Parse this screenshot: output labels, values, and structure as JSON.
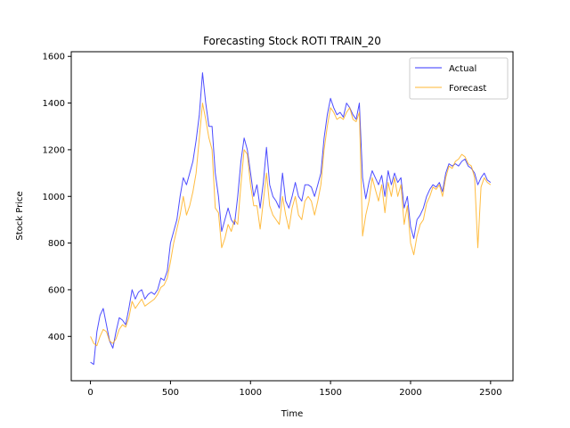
{
  "chart_data": {
    "type": "line",
    "title": "Forecasting Stock ROTI TRAIN_20",
    "xlabel": "Time",
    "ylabel": "Stock Price",
    "xlim": [
      -120,
      2640
    ],
    "ylim": [
      210,
      1620
    ],
    "xticks": [
      0,
      500,
      1000,
      1500,
      2000,
      2500
    ],
    "yticks": [
      400,
      600,
      800,
      1000,
      1200,
      1400,
      1600
    ],
    "grid": false,
    "legend_position": "top-right",
    "series": [
      {
        "name": "Actual",
        "color": "#0000ff",
        "x": [
          0,
          20,
          40,
          60,
          80,
          100,
          120,
          140,
          160,
          180,
          200,
          220,
          240,
          260,
          280,
          300,
          320,
          340,
          360,
          380,
          400,
          420,
          440,
          460,
          480,
          500,
          520,
          540,
          560,
          580,
          600,
          620,
          640,
          660,
          680,
          700,
          720,
          740,
          760,
          780,
          800,
          820,
          840,
          860,
          880,
          900,
          920,
          940,
          960,
          980,
          1000,
          1020,
          1040,
          1060,
          1080,
          1100,
          1120,
          1140,
          1160,
          1180,
          1200,
          1220,
          1240,
          1260,
          1280,
          1300,
          1320,
          1340,
          1360,
          1380,
          1400,
          1420,
          1440,
          1460,
          1480,
          1500,
          1520,
          1540,
          1560,
          1580,
          1600,
          1620,
          1640,
          1660,
          1680,
          1700,
          1720,
          1740,
          1760,
          1780,
          1800,
          1820,
          1840,
          1860,
          1880,
          1900,
          1920,
          1940,
          1960,
          1980,
          2000,
          2020,
          2040,
          2060,
          2080,
          2100,
          2120,
          2140,
          2160,
          2180,
          2200,
          2220,
          2240,
          2260,
          2280,
          2300,
          2320,
          2340,
          2360,
          2380,
          2400,
          2420,
          2440,
          2460,
          2480,
          2500
        ],
        "values": [
          290,
          280,
          420,
          490,
          520,
          450,
          380,
          350,
          420,
          480,
          470,
          450,
          520,
          600,
          560,
          590,
          600,
          560,
          580,
          590,
          580,
          600,
          650,
          640,
          680,
          800,
          850,
          900,
          1000,
          1080,
          1050,
          1100,
          1150,
          1240,
          1350,
          1530,
          1400,
          1300,
          1300,
          1100,
          1000,
          850,
          900,
          950,
          900,
          880,
          1000,
          1150,
          1250,
          1200,
          1100,
          1000,
          1050,
          950,
          1060,
          1210,
          1050,
          1000,
          980,
          950,
          1100,
          980,
          950,
          1000,
          1060,
          1000,
          980,
          1050,
          1050,
          1040,
          1000,
          1050,
          1100,
          1250,
          1350,
          1420,
          1380,
          1350,
          1360,
          1340,
          1400,
          1380,
          1350,
          1330,
          1400,
          1080,
          990,
          1060,
          1110,
          1080,
          1050,
          1090,
          1000,
          1110,
          1050,
          1100,
          1060,
          1080,
          950,
          1000,
          870,
          820,
          900,
          920,
          950,
          1000,
          1030,
          1050,
          1040,
          1060,
          1020,
          1100,
          1140,
          1130,
          1140,
          1130,
          1150,
          1160,
          1130,
          1120,
          1100,
          1050,
          1080,
          1100,
          1070,
          1060
        ]
      },
      {
        "name": "Forecast",
        "color": "#ffa500",
        "x": [
          0,
          20,
          40,
          60,
          80,
          100,
          120,
          140,
          160,
          180,
          200,
          220,
          240,
          260,
          280,
          300,
          320,
          340,
          360,
          380,
          400,
          420,
          440,
          460,
          480,
          500,
          520,
          540,
          560,
          580,
          600,
          620,
          640,
          660,
          680,
          700,
          720,
          740,
          760,
          780,
          800,
          820,
          840,
          860,
          880,
          900,
          920,
          940,
          960,
          980,
          1000,
          1020,
          1040,
          1060,
          1080,
          1100,
          1120,
          1140,
          1160,
          1180,
          1200,
          1220,
          1240,
          1260,
          1280,
          1300,
          1320,
          1340,
          1360,
          1380,
          1400,
          1420,
          1440,
          1460,
          1480,
          1500,
          1520,
          1540,
          1560,
          1580,
          1600,
          1620,
          1640,
          1660,
          1680,
          1700,
          1720,
          1740,
          1760,
          1780,
          1800,
          1820,
          1840,
          1860,
          1880,
          1900,
          1920,
          1940,
          1960,
          1980,
          2000,
          2020,
          2040,
          2060,
          2080,
          2100,
          2120,
          2140,
          2160,
          2180,
          2200,
          2220,
          2240,
          2260,
          2280,
          2300,
          2320,
          2340,
          2360,
          2380,
          2400,
          2420,
          2440,
          2460,
          2480,
          2500
        ],
        "values": [
          400,
          370,
          360,
          400,
          430,
          420,
          380,
          370,
          390,
          430,
          450,
          440,
          480,
          550,
          520,
          540,
          560,
          530,
          540,
          550,
          560,
          580,
          610,
          620,
          650,
          720,
          800,
          860,
          920,
          1000,
          920,
          960,
          1020,
          1100,
          1250,
          1400,
          1330,
          1250,
          1200,
          950,
          930,
          780,
          820,
          880,
          850,
          900,
          880,
          1050,
          1200,
          1180,
          1050,
          960,
          960,
          860,
          980,
          1100,
          960,
          920,
          900,
          880,
          1000,
          920,
          860,
          950,
          1000,
          920,
          900,
          980,
          1000,
          980,
          920,
          980,
          1050,
          1200,
          1300,
          1380,
          1360,
          1330,
          1340,
          1330,
          1360,
          1380,
          1330,
          1320,
          1360,
          830,
          920,
          980,
          1080,
          1030,
          980,
          1050,
          930,
          1060,
          1000,
          1080,
          1000,
          1050,
          880,
          960,
          800,
          750,
          830,
          880,
          900,
          970,
          1000,
          1040,
          1030,
          1050,
          1000,
          1080,
          1130,
          1120,
          1150,
          1160,
          1180,
          1170,
          1140,
          1130,
          1080,
          780,
          1040,
          1080,
          1060,
          1050
        ]
      }
    ]
  }
}
